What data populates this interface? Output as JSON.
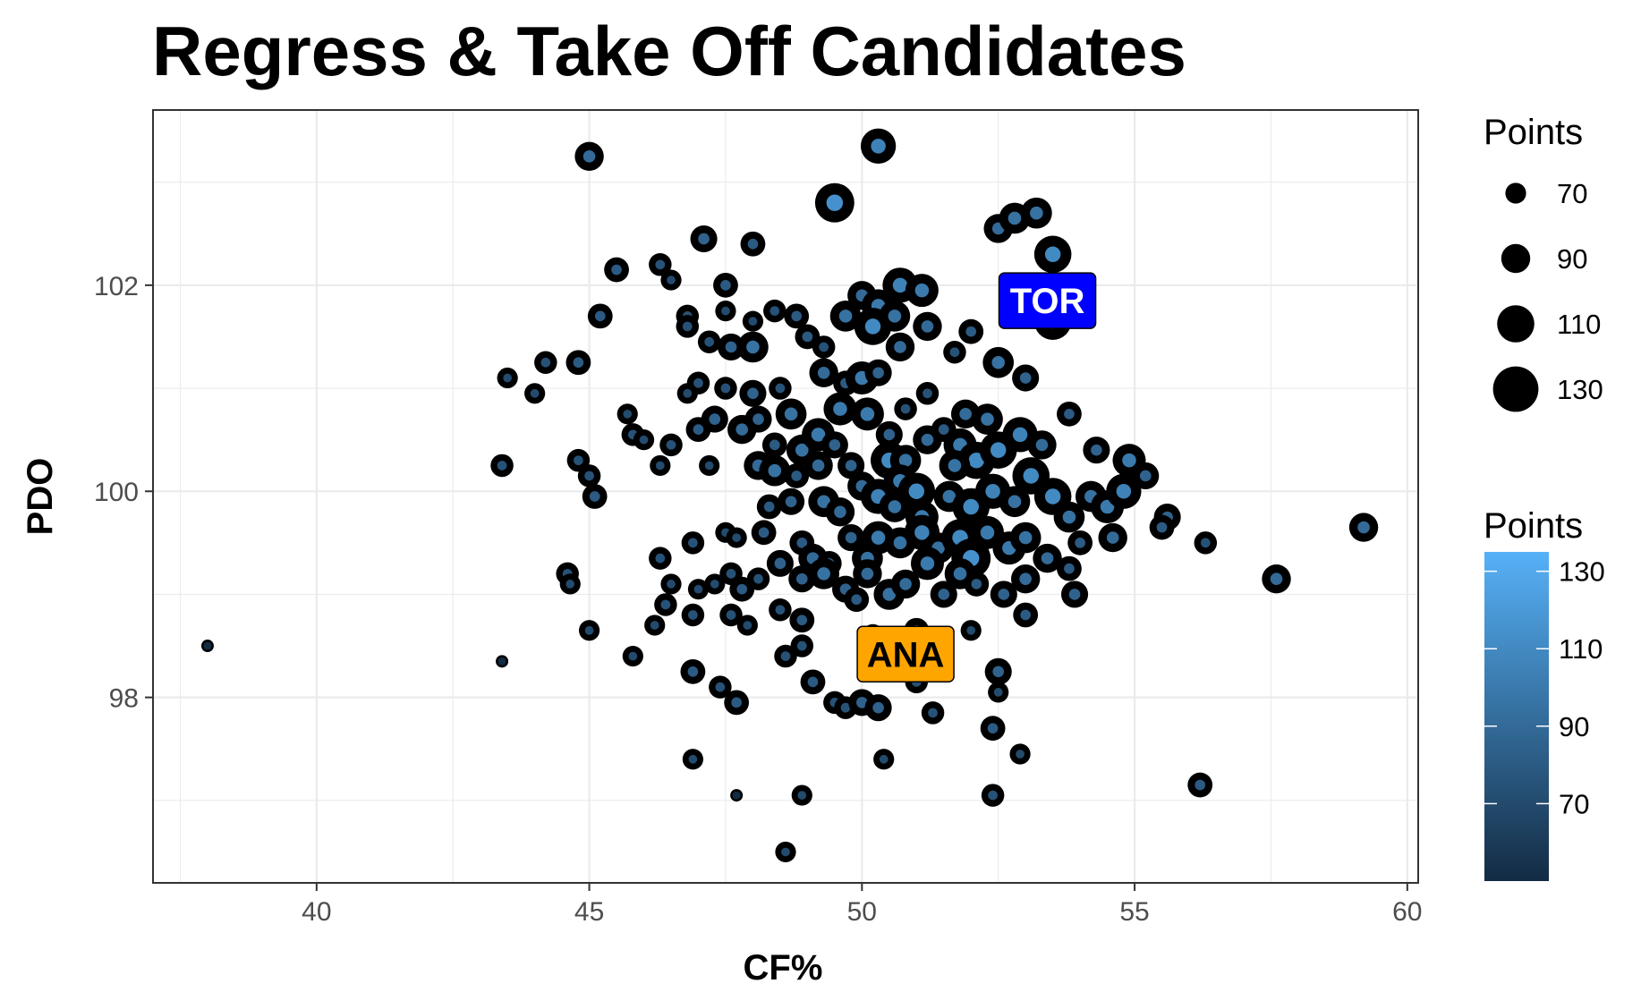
{
  "chart_data": {
    "type": "scatter",
    "title": "Regress & Take Off Candidates",
    "xlabel": "CF%",
    "ylabel": "PDO",
    "xlim": [
      37,
      60.2
    ],
    "ylim": [
      96.2,
      103.7
    ],
    "x_ticks": [
      "40",
      "45",
      "50",
      "55",
      "60"
    ],
    "y_ticks": [
      "98",
      "100",
      "102"
    ],
    "grid": true,
    "point_outline_color": "#000000",
    "size_legend": {
      "title": "Points",
      "breaks": [
        "70",
        "90",
        "110",
        "130"
      ]
    },
    "color_legend": {
      "title": "Points",
      "breaks": [
        "70",
        "90",
        "110",
        "130"
      ],
      "low": "#132B43",
      "high": "#56B1F7",
      "range": [
        50,
        135
      ]
    },
    "labels": [
      {
        "text": "TOR",
        "x": 53.4,
        "y": 101.85,
        "fill": "#0000ff",
        "text_color": "#ffffff"
      },
      {
        "text": "ANA",
        "x": 50.8,
        "y": 98.42,
        "fill": "#ffa500",
        "text_color": "#000000"
      }
    ],
    "points": [
      [
        38.0,
        98.5,
        50
      ],
      [
        43.4,
        98.35,
        50
      ],
      [
        45.0,
        103.25,
        90
      ],
      [
        50.3,
        103.35,
        105
      ],
      [
        49.5,
        102.8,
        115
      ],
      [
        47.1,
        102.45,
        85
      ],
      [
        48.0,
        102.4,
        80
      ],
      [
        52.5,
        102.55,
        90
      ],
      [
        52.8,
        102.65,
        95
      ],
      [
        53.2,
        102.7,
        95
      ],
      [
        53.5,
        102.3,
        110
      ],
      [
        45.5,
        102.15,
        80
      ],
      [
        46.3,
        102.2,
        75
      ],
      [
        46.5,
        102.05,
        70
      ],
      [
        47.5,
        102.0,
        80
      ],
      [
        46.8,
        101.7,
        75
      ],
      [
        50.0,
        101.9,
        90
      ],
      [
        50.3,
        101.8,
        100
      ],
      [
        50.7,
        102.0,
        105
      ],
      [
        51.1,
        101.95,
        100
      ],
      [
        49.7,
        101.7,
        95
      ],
      [
        50.2,
        101.6,
        110
      ],
      [
        50.6,
        101.7,
        95
      ],
      [
        51.2,
        101.6,
        90
      ],
      [
        45.2,
        101.7,
        80
      ],
      [
        52.0,
        101.55,
        80
      ],
      [
        53.5,
        101.65,
        110
      ],
      [
        47.5,
        101.75,
        70
      ],
      [
        48.0,
        101.65,
        70
      ],
      [
        48.4,
        101.75,
        75
      ],
      [
        48.8,
        101.7,
        80
      ],
      [
        46.8,
        101.6,
        75
      ],
      [
        47.2,
        101.45,
        75
      ],
      [
        47.6,
        101.4,
        85
      ],
      [
        48.0,
        101.4,
        95
      ],
      [
        49.0,
        101.5,
        80
      ],
      [
        49.3,
        101.4,
        75
      ],
      [
        50.7,
        101.4,
        90
      ],
      [
        51.7,
        101.35,
        75
      ],
      [
        43.5,
        101.1,
        70
      ],
      [
        44.2,
        101.25,
        75
      ],
      [
        44.0,
        100.95,
        70
      ],
      [
        44.8,
        101.25,
        80
      ],
      [
        47.0,
        101.05,
        75
      ],
      [
        46.8,
        100.95,
        70
      ],
      [
        47.5,
        101.0,
        75
      ],
      [
        48.0,
        100.95,
        85
      ],
      [
        48.5,
        101.0,
        75
      ],
      [
        49.3,
        101.15,
        90
      ],
      [
        49.7,
        101.05,
        80
      ],
      [
        50.0,
        101.1,
        100
      ],
      [
        50.3,
        101.15,
        85
      ],
      [
        51.2,
        100.95,
        75
      ],
      [
        52.5,
        101.25,
        95
      ],
      [
        53.0,
        101.1,
        85
      ],
      [
        45.7,
        100.75,
        70
      ],
      [
        45.8,
        100.55,
        75
      ],
      [
        46.0,
        100.5,
        70
      ],
      [
        46.5,
        100.45,
        75
      ],
      [
        46.3,
        100.25,
        70
      ],
      [
        47.0,
        100.6,
        80
      ],
      [
        47.3,
        100.7,
        85
      ],
      [
        47.2,
        100.25,
        70
      ],
      [
        47.8,
        100.6,
        90
      ],
      [
        48.1,
        100.7,
        85
      ],
      [
        48.4,
        100.45,
        80
      ],
      [
        48.7,
        100.75,
        95
      ],
      [
        48.1,
        100.25,
        90
      ],
      [
        48.4,
        100.2,
        95
      ],
      [
        48.9,
        100.4,
        95
      ],
      [
        49.2,
        100.55,
        100
      ],
      [
        48.8,
        100.15,
        80
      ],
      [
        49.2,
        100.25,
        90
      ],
      [
        49.6,
        100.8,
        100
      ],
      [
        49.5,
        100.45,
        85
      ],
      [
        49.8,
        100.25,
        85
      ],
      [
        50.1,
        100.75,
        100
      ],
      [
        50.5,
        100.55,
        85
      ],
      [
        50.8,
        100.8,
        75
      ],
      [
        50.5,
        100.3,
        110
      ],
      [
        50.8,
        100.3,
        95
      ],
      [
        51.2,
        100.5,
        90
      ],
      [
        51.5,
        100.6,
        80
      ],
      [
        51.9,
        100.75,
        90
      ],
      [
        52.3,
        100.7,
        95
      ],
      [
        51.8,
        100.45,
        100
      ],
      [
        52.1,
        100.3,
        110
      ],
      [
        51.7,
        100.25,
        95
      ],
      [
        52.5,
        100.4,
        110
      ],
      [
        52.9,
        100.55,
        105
      ],
      [
        53.3,
        100.45,
        90
      ],
      [
        53.8,
        100.75,
        80
      ],
      [
        54.3,
        100.4,
        85
      ],
      [
        54.9,
        100.3,
        100
      ],
      [
        55.2,
        100.15,
        85
      ],
      [
        44.8,
        100.3,
        75
      ],
      [
        45.0,
        100.15,
        75
      ],
      [
        45.1,
        99.95,
        80
      ],
      [
        43.4,
        100.25,
        75
      ],
      [
        48.3,
        99.85,
        80
      ],
      [
        48.7,
        99.9,
        85
      ],
      [
        49.3,
        99.9,
        95
      ],
      [
        49.6,
        99.8,
        90
      ],
      [
        50.0,
        100.05,
        90
      ],
      [
        50.3,
        99.95,
        105
      ],
      [
        50.7,
        100.1,
        100
      ],
      [
        50.6,
        99.85,
        95
      ],
      [
        51.0,
        100.0,
        110
      ],
      [
        51.1,
        99.75,
        100
      ],
      [
        51.6,
        99.95,
        95
      ],
      [
        52.0,
        99.85,
        110
      ],
      [
        52.4,
        100.0,
        105
      ],
      [
        52.8,
        99.9,
        95
      ],
      [
        53.1,
        100.15,
        110
      ],
      [
        53.5,
        99.95,
        110
      ],
      [
        53.8,
        99.75,
        95
      ],
      [
        54.2,
        99.95,
        95
      ],
      [
        54.5,
        99.85,
        100
      ],
      [
        54.8,
        100.0,
        105
      ],
      [
        55.6,
        99.75,
        85
      ],
      [
        55.5,
        99.65,
        80
      ],
      [
        56.3,
        99.5,
        75
      ],
      [
        54.6,
        99.55,
        90
      ],
      [
        59.2,
        99.65,
        90
      ],
      [
        46.9,
        99.5,
        75
      ],
      [
        47.5,
        99.6,
        70
      ],
      [
        47.7,
        99.55,
        70
      ],
      [
        48.2,
        99.6,
        80
      ],
      [
        48.5,
        99.3,
        85
      ],
      [
        48.9,
        99.5,
        80
      ],
      [
        49.1,
        99.35,
        90
      ],
      [
        49.4,
        99.3,
        80
      ],
      [
        49.8,
        99.55,
        85
      ],
      [
        50.1,
        99.35,
        95
      ],
      [
        50.3,
        99.55,
        100
      ],
      [
        50.7,
        99.5,
        95
      ],
      [
        51.1,
        99.6,
        105
      ],
      [
        51.4,
        99.45,
        95
      ],
      [
        51.8,
        99.55,
        110
      ],
      [
        52.0,
        99.35,
        115
      ],
      [
        52.3,
        99.6,
        100
      ],
      [
        52.7,
        99.45,
        100
      ],
      [
        53.0,
        99.55,
        95
      ],
      [
        53.4,
        99.35,
        90
      ],
      [
        53.8,
        99.25,
        80
      ],
      [
        54.0,
        99.5,
        80
      ],
      [
        44.6,
        99.2,
        75
      ],
      [
        44.65,
        99.1,
        70
      ],
      [
        46.3,
        99.35,
        75
      ],
      [
        46.5,
        99.1,
        70
      ],
      [
        46.4,
        98.9,
        75
      ],
      [
        47.0,
        99.05,
        70
      ],
      [
        47.3,
        99.1,
        70
      ],
      [
        47.6,
        99.2,
        75
      ],
      [
        47.8,
        99.05,
        80
      ],
      [
        48.1,
        99.15,
        75
      ],
      [
        48.9,
        99.15,
        85
      ],
      [
        49.3,
        99.2,
        95
      ],
      [
        49.7,
        99.05,
        85
      ],
      [
        50.1,
        99.2,
        90
      ],
      [
        50.5,
        99.0,
        95
      ],
      [
        50.8,
        99.1,
        90
      ],
      [
        51.2,
        99.3,
        100
      ],
      [
        51.5,
        99.0,
        85
      ],
      [
        51.8,
        99.2,
        95
      ],
      [
        52.1,
        99.1,
        80
      ],
      [
        52.6,
        99.0,
        85
      ],
      [
        53.0,
        99.15,
        90
      ],
      [
        53.9,
        99.0,
        85
      ],
      [
        45.0,
        98.65,
        70
      ],
      [
        45.8,
        98.4,
        70
      ],
      [
        46.2,
        98.7,
        70
      ],
      [
        46.9,
        98.8,
        75
      ],
      [
        47.6,
        98.8,
        75
      ],
      [
        47.9,
        98.7,
        70
      ],
      [
        48.5,
        98.85,
        75
      ],
      [
        48.9,
        98.75,
        80
      ],
      [
        49.9,
        98.95,
        80
      ],
      [
        50.2,
        98.6,
        75
      ],
      [
        51.0,
        98.65,
        80
      ],
      [
        52.0,
        98.65,
        70
      ],
      [
        52.5,
        98.25,
        85
      ],
      [
        53.0,
        98.8,
        80
      ],
      [
        48.6,
        98.4,
        75
      ],
      [
        48.9,
        98.5,
        75
      ],
      [
        46.9,
        98.25,
        80
      ],
      [
        47.4,
        98.1,
        75
      ],
      [
        47.7,
        97.95,
        80
      ],
      [
        49.1,
        98.15,
        80
      ],
      [
        51.0,
        98.15,
        75
      ],
      [
        52.5,
        98.05,
        70
      ],
      [
        49.5,
        97.95,
        75
      ],
      [
        49.7,
        97.9,
        75
      ],
      [
        50.0,
        97.95,
        85
      ],
      [
        50.3,
        97.9,
        85
      ],
      [
        51.3,
        97.85,
        75
      ],
      [
        52.4,
        97.7,
        80
      ],
      [
        52.9,
        97.45,
        70
      ],
      [
        46.9,
        97.4,
        70
      ],
      [
        50.4,
        97.4,
        70
      ],
      [
        56.2,
        97.15,
        80
      ],
      [
        57.6,
        99.15,
        90
      ],
      [
        47.7,
        97.05,
        50
      ],
      [
        48.9,
        97.05,
        70
      ],
      [
        52.4,
        97.05,
        75
      ],
      [
        48.6,
        96.5,
        70
      ]
    ]
  }
}
